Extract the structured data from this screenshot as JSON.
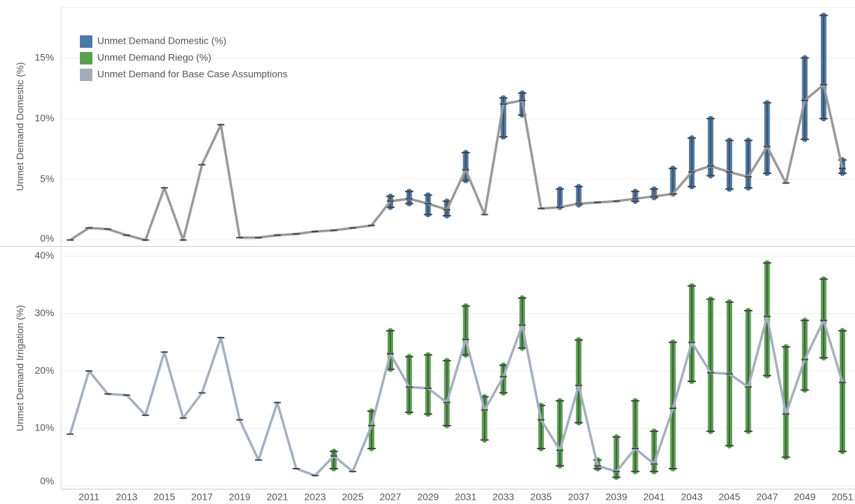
{
  "chart_data": {
    "type": "line",
    "categories": [
      null,
      "2011",
      null,
      "2013",
      null,
      "2015",
      null,
      "2017",
      null,
      "2019",
      null,
      "2021",
      null,
      "2023",
      null,
      "2025",
      null,
      "2027",
      null,
      "2029",
      null,
      "2031",
      null,
      "2033",
      null,
      "2035",
      null,
      "2037",
      null,
      "2039",
      null,
      "2041",
      null,
      "2043",
      null,
      "2045",
      null,
      "2047",
      null,
      "2049",
      null,
      "2051"
    ],
    "legend": [
      {
        "name": "Unmet Demand Domestic (%)",
        "color": "#4e79a7"
      },
      {
        "name": "Unmet Demand Riego (%)",
        "color": "#59a14f"
      },
      {
        "name": "Unmet Demand for Base Case Assumptions",
        "color": "#a5acb9"
      }
    ],
    "panels": [
      {
        "ylabel": "Unmet Demand Domestic (%)",
        "ylim": [
          -0.5,
          19.2
        ],
        "yticks": [
          {
            "value": 0,
            "label": "0%"
          },
          {
            "value": 5,
            "label": "5%"
          },
          {
            "value": 10,
            "label": "10%"
          },
          {
            "value": 15,
            "label": "15%"
          }
        ],
        "spread_color": "#4e79a7",
        "line_color": "#999999",
        "base": [
          0,
          1.0,
          0.9,
          0.4,
          0,
          4.3,
          0,
          6.2,
          9.5,
          0.2,
          0.2,
          0.4,
          0.5,
          0.7,
          0.8,
          1.0,
          1.2,
          3.2,
          3.4,
          3.0,
          2.5,
          5.8,
          2.1,
          11.2,
          11.5,
          2.6,
          2.7,
          3.0,
          3.1,
          3.2,
          3.4,
          3.6,
          3.8,
          5.6,
          6.1,
          5.6,
          5.2,
          7.7,
          4.7,
          11.5,
          12.8,
          5.9
        ],
        "low": [
          null,
          null,
          null,
          null,
          null,
          null,
          null,
          null,
          null,
          null,
          null,
          null,
          null,
          null,
          null,
          null,
          null,
          2.7,
          3.0,
          2.1,
          2.0,
          4.9,
          null,
          8.5,
          10.3,
          null,
          2.7,
          2.9,
          null,
          null,
          3.2,
          3.5,
          3.8,
          4.4,
          5.3,
          4.2,
          4.3,
          5.5,
          null,
          8.3,
          10.0,
          5.5
        ],
        "high": [
          null,
          null,
          null,
          null,
          null,
          null,
          null,
          null,
          null,
          null,
          null,
          null,
          null,
          null,
          null,
          null,
          null,
          3.6,
          4.0,
          3.7,
          3.2,
          7.2,
          null,
          11.7,
          12.1,
          null,
          4.2,
          4.4,
          null,
          null,
          4.0,
          4.2,
          5.9,
          8.4,
          10.0,
          8.2,
          8.2,
          11.3,
          null,
          15.0,
          18.5,
          6.6
        ]
      },
      {
        "ylabel": "Unmet Demand Irrigation (%)",
        "ylim": [
          -0.5,
          41.5
        ],
        "yticks": [
          {
            "value": 0,
            "label": "0%"
          },
          {
            "value": 10,
            "label": "10%"
          },
          {
            "value": 20,
            "label": "20%"
          },
          {
            "value": 30,
            "label": "30%"
          },
          {
            "value": 40,
            "label": "40%"
          }
        ],
        "spread_color": "#59a14f",
        "line_color": "#a5afc0",
        "base": [
          9,
          20,
          16,
          15.8,
          12.3,
          23.3,
          11.8,
          16.2,
          25.8,
          11.5,
          4.5,
          14.5,
          3.0,
          1.8,
          5.2,
          2.5,
          10.5,
          23,
          17.2,
          17,
          14.5,
          25.5,
          13.2,
          19,
          28,
          11.5,
          6.2,
          17.5,
          3.5,
          2.5,
          6.5,
          3.8,
          13.5,
          25,
          19.7,
          19.5,
          17.2,
          29.5,
          12.5,
          22,
          28.8,
          18
        ],
        "low": [
          null,
          null,
          null,
          null,
          null,
          null,
          null,
          null,
          null,
          null,
          null,
          null,
          null,
          null,
          3,
          null,
          6.5,
          20.3,
          12.8,
          12.5,
          10.5,
          22.8,
          8,
          16.2,
          24,
          6.5,
          3.5,
          11,
          3,
          1.5,
          2.5,
          2.5,
          3,
          18.2,
          9.5,
          7,
          9.5,
          19.2,
          5,
          16.7,
          22.3,
          6
        ],
        "high": [
          null,
          null,
          null,
          null,
          null,
          null,
          null,
          null,
          null,
          null,
          null,
          null,
          null,
          null,
          6,
          null,
          13,
          27,
          22.5,
          22.8,
          21.8,
          31.3,
          15.5,
          21,
          32.7,
          14,
          14.8,
          25.4,
          4.5,
          8.5,
          14.8,
          9.5,
          25,
          34.8,
          32.5,
          32,
          30.5,
          38.8,
          24.2,
          28.8,
          36,
          27
        ]
      }
    ]
  }
}
